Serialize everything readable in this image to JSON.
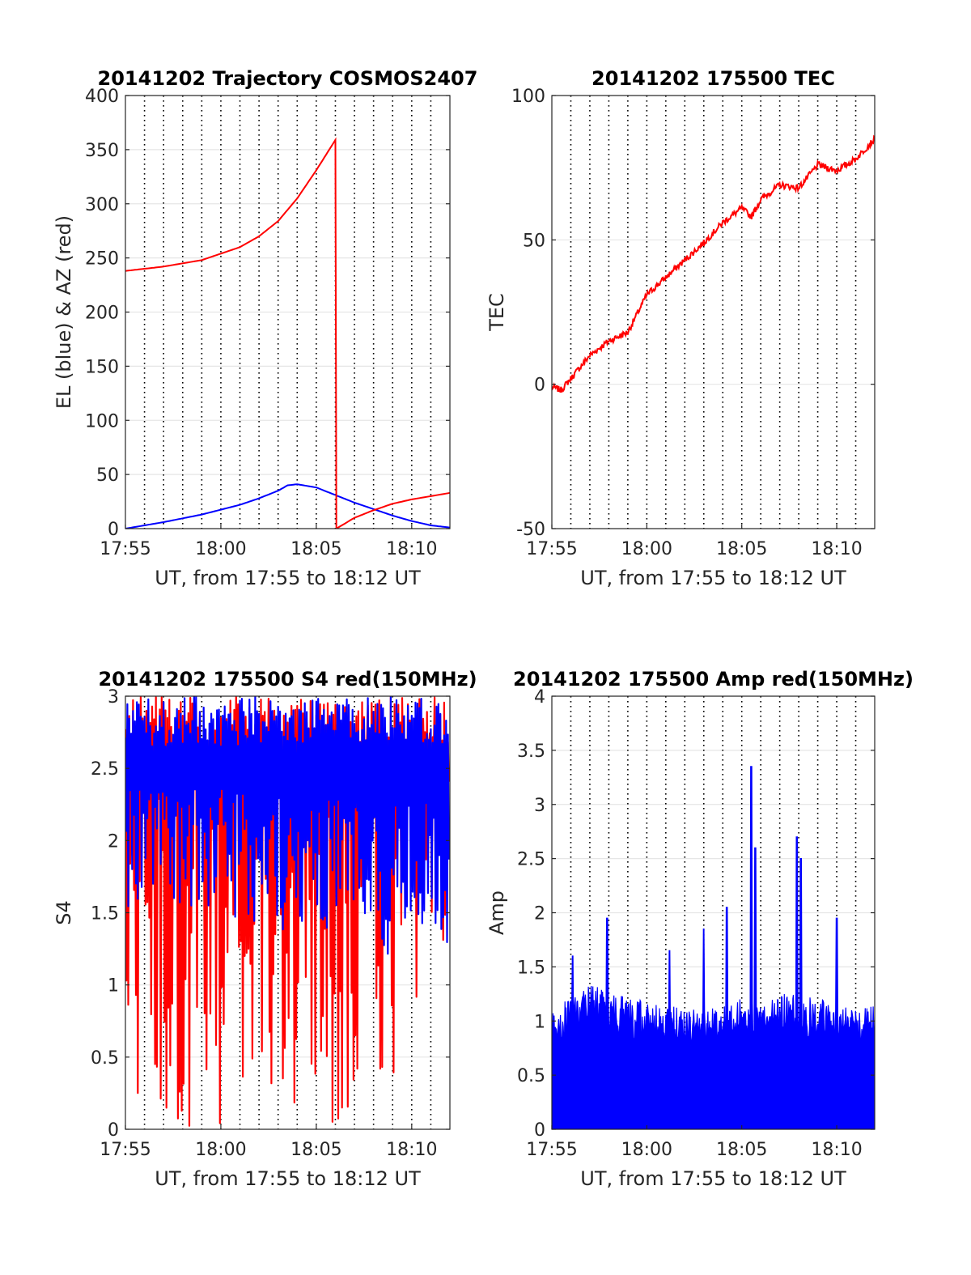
{
  "colors": {
    "elevation": "#0000ff",
    "azimuth": "#ff0000",
    "tec": "#ff0000",
    "s4_red": "#ff0000",
    "s4_blue": "#0000ff",
    "amp": "#0000ff",
    "axes": "#262626",
    "grid": "#e6e6e6"
  },
  "chart_data": [
    {
      "id": "trajectory",
      "type": "line",
      "title": "20141202 Trajectory COSMOS2407",
      "xlabel": "UT, from 17:55 to 18:12 UT",
      "ylabel": "EL (blue) & AZ (red)",
      "xlim": [
        0,
        17
      ],
      "ylim": [
        0,
        400
      ],
      "xticks": [
        0,
        5,
        10,
        15
      ],
      "xticklabels": [
        "17:55",
        "18:00",
        "18:05",
        "18:10"
      ],
      "yticks": [
        0,
        50,
        100,
        150,
        200,
        250,
        300,
        350,
        400
      ],
      "yticklabels": [
        "0",
        "50",
        "100",
        "150",
        "200",
        "250",
        "300",
        "350",
        "400"
      ],
      "grid": true,
      "x_minor_dotted_grid": true,
      "series": [
        {
          "color": "blue",
          "x": [
            0,
            2,
            4,
            6,
            7,
            8,
            8.5,
            9,
            10,
            11,
            12,
            13,
            14,
            15,
            16,
            17
          ],
          "values": [
            0,
            6,
            13,
            22,
            28,
            35,
            40,
            41,
            38,
            31,
            24,
            18,
            12,
            7,
            3,
            1
          ]
        },
        {
          "color": "red",
          "x": [
            0,
            2,
            4,
            6,
            7,
            8,
            9,
            10,
            11,
            11.05,
            12,
            13,
            14,
            15,
            16,
            17
          ],
          "values": [
            238,
            242,
            248,
            260,
            270,
            284,
            305,
            331,
            359,
            0,
            10,
            17,
            23,
            27,
            30,
            33
          ]
        }
      ]
    },
    {
      "id": "tec",
      "type": "line",
      "title": "20141202 175500 TEC",
      "xlabel": "UT, from 17:55 to 18:12 UT",
      "ylabel": "TEC",
      "xlim": [
        0,
        17
      ],
      "ylim": [
        -50,
        100
      ],
      "xticks": [
        0,
        5,
        10,
        15
      ],
      "xticklabels": [
        "17:55",
        "18:00",
        "18:05",
        "18:10"
      ],
      "yticks": [
        -50,
        0,
        50,
        100
      ],
      "yticklabels": [
        "-50",
        "0",
        "50",
        "100"
      ],
      "grid": true,
      "x_minor_dotted_grid": true,
      "series": [
        {
          "color": "red",
          "x": [
            0,
            0.5,
            1,
            2,
            3,
            4,
            5,
            6,
            7,
            8,
            9,
            10,
            10.5,
            11,
            12,
            13,
            14,
            15,
            16,
            17
          ],
          "values": [
            -1,
            -2,
            2,
            10,
            15,
            18,
            31,
            37,
            43,
            49,
            56,
            61,
            58,
            64,
            69,
            68,
            76,
            74,
            78,
            85
          ]
        }
      ]
    },
    {
      "id": "s4",
      "type": "line",
      "title": "20141202 175500 S4 red(150MHz)",
      "xlabel": "UT, from 17:55 to 18:12 UT",
      "ylabel": "S4",
      "xlim": [
        0,
        17
      ],
      "ylim": [
        0,
        3
      ],
      "xticks": [
        0,
        5,
        10,
        15
      ],
      "xticklabels": [
        "17:55",
        "18:00",
        "18:05",
        "18:10"
      ],
      "yticks": [
        0,
        0.5,
        1,
        1.5,
        2,
        2.5,
        3
      ],
      "yticklabels": [
        "0",
        "0.5",
        "1",
        "1.5",
        "2",
        "2.5",
        "3"
      ],
      "grid": true,
      "x_minor_dotted_grid": true,
      "series": [
        {
          "color": "red",
          "style": "noisy",
          "x_range": [
            0,
            17
          ],
          "envelope_x": [
            0,
            2,
            4,
            6,
            8,
            10,
            12,
            14,
            16,
            17
          ],
          "envelope_low": [
            0,
            0,
            0,
            0,
            0,
            0,
            0,
            0.3,
            1.0,
            1.1
          ],
          "envelope_high": [
            3,
            3,
            3,
            3,
            3,
            3,
            3,
            3,
            3,
            3
          ]
        },
        {
          "color": "blue",
          "style": "noisy",
          "x_range": [
            0,
            17
          ],
          "envelope_x": [
            0,
            2,
            4,
            6,
            8,
            10,
            12,
            14,
            16,
            17
          ],
          "envelope_low": [
            1.5,
            1.55,
            1.55,
            1.35,
            1.3,
            1.4,
            1.3,
            1.2,
            1.25,
            1.2
          ],
          "envelope_high": [
            3,
            3,
            3,
            3,
            3,
            3,
            3,
            3,
            3,
            3
          ]
        }
      ]
    },
    {
      "id": "amp",
      "type": "line",
      "title": "20141202 175500 Amp red(150MHz)",
      "xlabel": "UT, from 17:55 to 18:12 UT",
      "ylabel": "Amp",
      "xlim": [
        0,
        17
      ],
      "ylim": [
        0,
        4
      ],
      "xticks": [
        0,
        5,
        10,
        15
      ],
      "xticklabels": [
        "17:55",
        "18:00",
        "18:05",
        "18:10"
      ],
      "yticks": [
        0,
        0.5,
        1,
        1.5,
        2,
        2.5,
        3,
        3.5,
        4
      ],
      "yticklabels": [
        "0",
        "0.5",
        "1",
        "1.5",
        "2",
        "2.5",
        "3",
        "3.5",
        "4"
      ],
      "grid": true,
      "x_minor_dotted_grid": true,
      "series": [
        {
          "color": "blue",
          "style": "filled-noisy",
          "x_range": [
            0,
            17
          ],
          "baseline_x": [
            0,
            2,
            4,
            6,
            8,
            10,
            12,
            14,
            16,
            17
          ],
          "baseline_high": [
            1.0,
            1.25,
            1.1,
            1.05,
            1.0,
            1.1,
            1.15,
            1.1,
            1.0,
            1.05
          ],
          "peaks_x": [
            1.1,
            2.9,
            6.2,
            8.0,
            9.2,
            10.5,
            10.7,
            12.9,
            13.1,
            15.0
          ],
          "peaks_y": [
            1.6,
            1.95,
            1.65,
            1.85,
            2.05,
            3.35,
            2.6,
            2.7,
            2.5,
            1.95
          ]
        }
      ]
    }
  ]
}
